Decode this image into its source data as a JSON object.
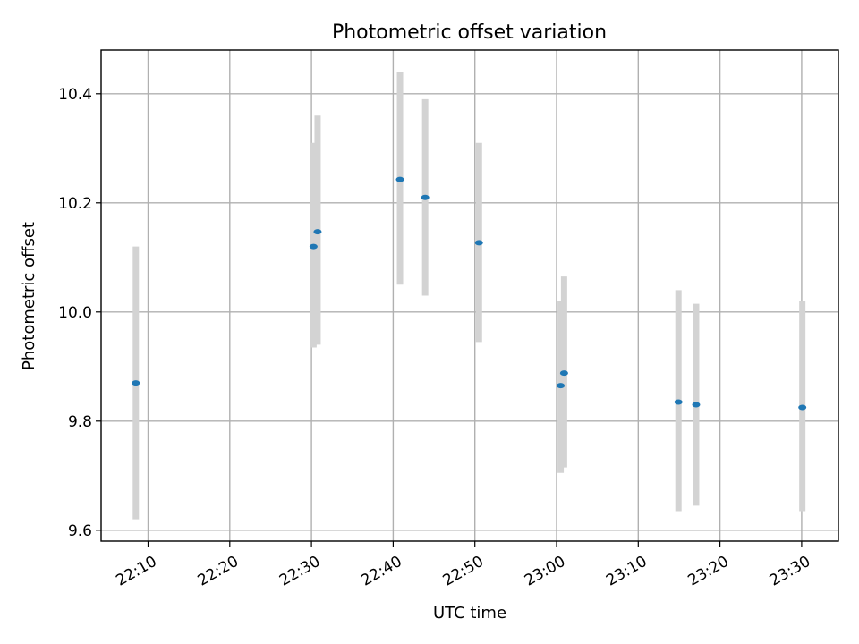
{
  "chart_data": {
    "type": "scatter",
    "title": "Photometric offset variation",
    "xlabel": "UTC time",
    "ylabel": "Photometric offset",
    "x_ticks": [
      "22:10",
      "22:20",
      "22:30",
      "22:40",
      "22:50",
      "23:00",
      "23:10",
      "23:20",
      "23:30"
    ],
    "y_ticks": [
      "9.6",
      "9.8",
      "10.0",
      "10.2",
      "10.4"
    ],
    "xlim": [
      "22:04:15",
      "23:34:30"
    ],
    "ylim": [
      9.58,
      10.48
    ],
    "grid": true,
    "legend": "none",
    "series": [
      {
        "marker_color": "#1f77b4",
        "errorbar_color": "#d3d3d3",
        "points": [
          {
            "time": "22:08:30",
            "offset": 9.87,
            "low": 9.62,
            "high": 10.12
          },
          {
            "time": "22:30:15",
            "offset": 10.12,
            "low": 9.935,
            "high": 10.31
          },
          {
            "time": "22:30:45",
            "offset": 10.147,
            "low": 9.94,
            "high": 10.36
          },
          {
            "time": "22:40:50",
            "offset": 10.243,
            "low": 10.05,
            "high": 10.44
          },
          {
            "time": "22:43:55",
            "offset": 10.21,
            "low": 10.03,
            "high": 10.39
          },
          {
            "time": "22:50:30",
            "offset": 10.127,
            "low": 9.945,
            "high": 10.31
          },
          {
            "time": "23:00:30",
            "offset": 9.865,
            "low": 9.705,
            "high": 10.02
          },
          {
            "time": "23:00:55",
            "offset": 9.888,
            "low": 9.715,
            "high": 10.065
          },
          {
            "time": "23:14:55",
            "offset": 9.835,
            "low": 9.635,
            "high": 10.04
          },
          {
            "time": "23:17:05",
            "offset": 9.83,
            "low": 9.645,
            "high": 10.015
          },
          {
            "time": "23:30:05",
            "offset": 9.825,
            "low": 9.635,
            "high": 10.02
          }
        ]
      }
    ]
  }
}
